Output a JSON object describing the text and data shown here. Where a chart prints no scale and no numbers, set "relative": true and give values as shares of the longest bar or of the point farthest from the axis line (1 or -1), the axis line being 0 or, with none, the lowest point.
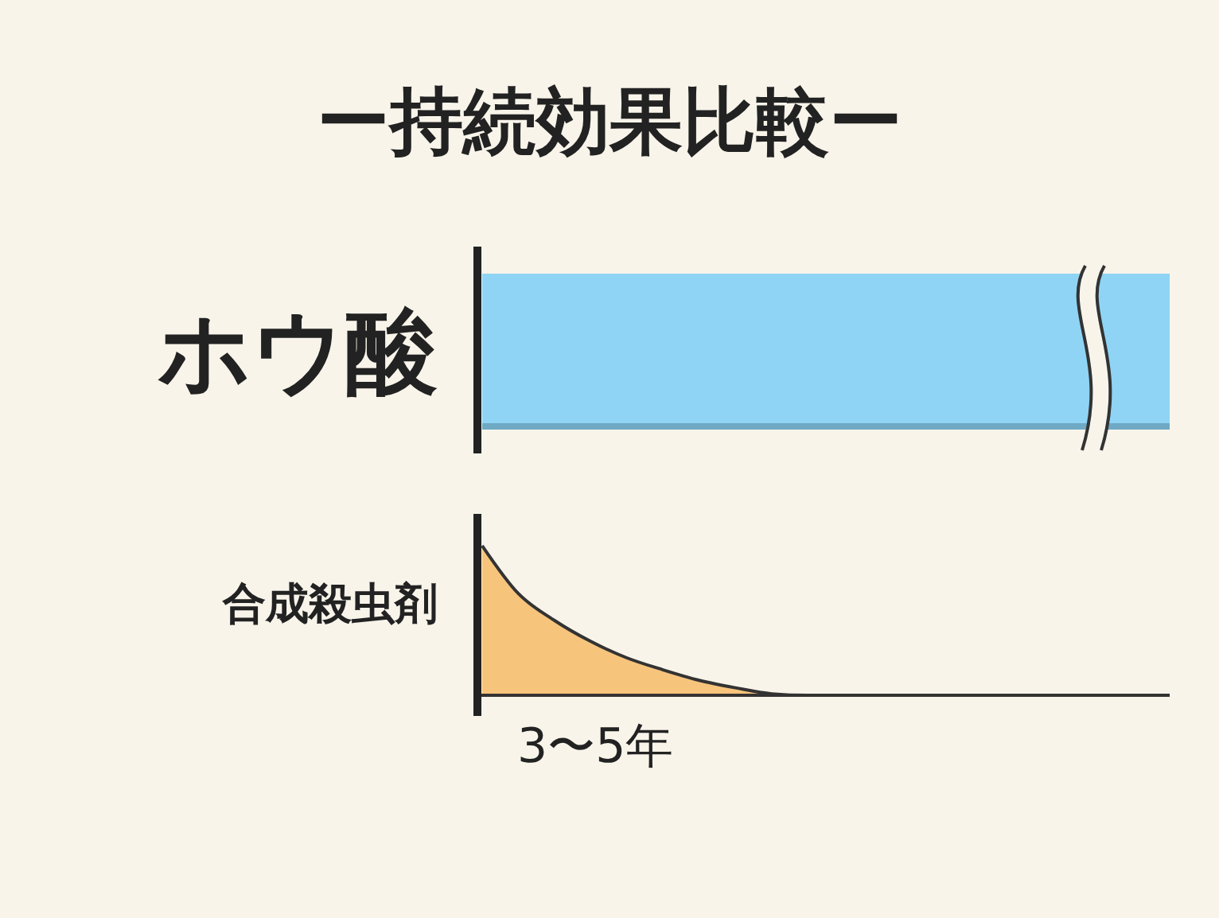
{
  "chart_data": [
    {
      "type": "bar",
      "orientation": "horizontal",
      "relative": true,
      "title": "ー持続効果比較ー",
      "categories": [
        "ホウ酸"
      ],
      "values": [
        1
      ],
      "color": "#8fd4f4"
    },
    {
      "type": "area",
      "relative": true,
      "ylabel": "合成殺虫剤",
      "categories": [
        null,
        null,
        null,
        null,
        null,
        null,
        null,
        null,
        null,
        null,
        null,
        null,
        null,
        null,
        null,
        null,
        null,
        null,
        null,
        null
      ],
      "values": [
        1,
        0.68,
        0.5,
        0.36,
        0.25,
        0.17,
        0.1,
        0.05,
        0.01,
        0,
        0,
        0,
        0,
        0,
        0,
        0,
        0,
        0,
        0,
        0
      ],
      "color": "#f7c47c",
      "annotations": [
        "3〜5年"
      ]
    }
  ]
}
